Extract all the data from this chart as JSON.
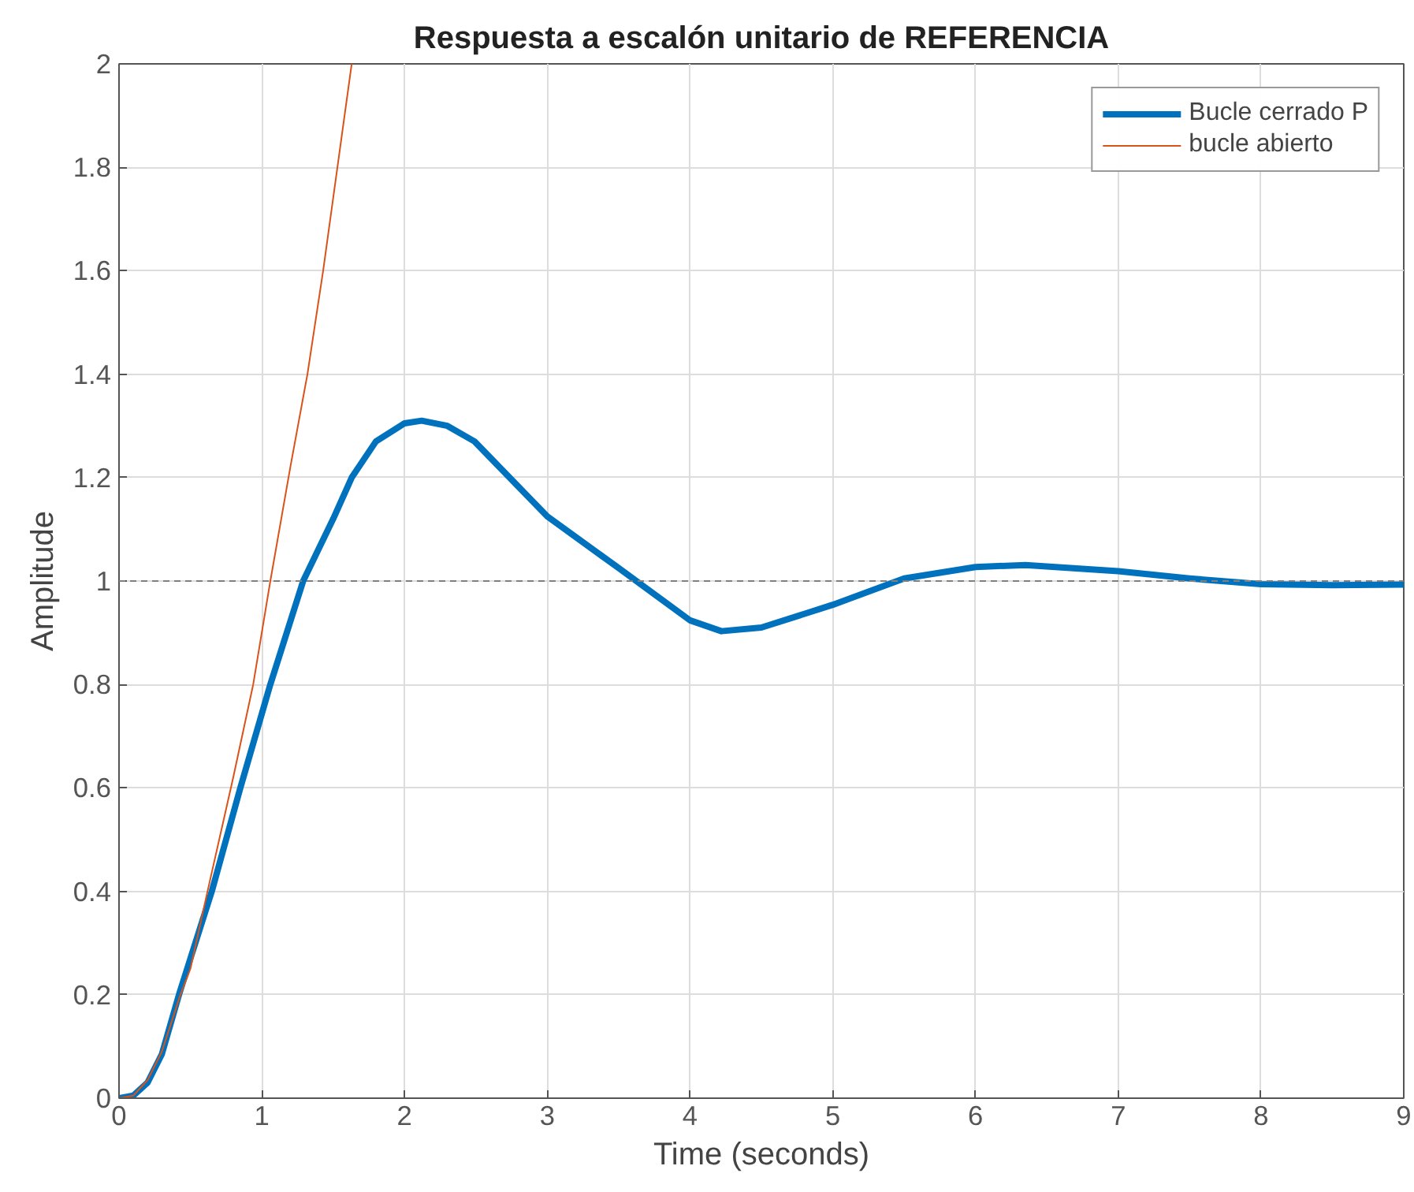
{
  "chart_data": {
    "type": "line",
    "title": "Respuesta a escalón unitario de REFERENCIA",
    "xlabel": "Time (seconds)",
    "ylabel": "Amplitude",
    "xlim": [
      0,
      9
    ],
    "ylim": [
      0,
      2
    ],
    "xticks": [
      0,
      1,
      2,
      3,
      4,
      5,
      6,
      7,
      8,
      9
    ],
    "yticks": [
      0,
      0.2,
      0.4,
      0.6,
      0.8,
      1,
      1.2,
      1.4,
      1.6,
      1.8,
      2
    ],
    "grid": true,
    "legend": "top right",
    "line_style": "solid",
    "ref_lines": [
      {
        "axis": "y",
        "value": 1,
        "label": null,
        "color": "#808080",
        "line_style": "dashed"
      }
    ],
    "series": [
      {
        "name": "Bucle cerrado P",
        "color": "#0072bd",
        "x": [
          0,
          0.1,
          0.2,
          0.3,
          0.42,
          0.5,
          0.65,
          0.85,
          1.06,
          1.29,
          1.5,
          1.63,
          1.8,
          2.0,
          2.12,
          2.3,
          2.49,
          3.0,
          3.5,
          4.0,
          4.22,
          4.5,
          5.0,
          5.5,
          6.0,
          6.35,
          7.0,
          7.5,
          8.0,
          8.5,
          9.0
        ],
        "values": [
          0,
          0.005,
          0.03,
          0.085,
          0.2,
          0.27,
          0.4,
          0.6,
          0.8,
          1.0,
          1.12,
          1.2,
          1.27,
          1.305,
          1.31,
          1.3,
          1.27,
          1.125,
          1.025,
          0.924,
          0.903,
          0.91,
          0.954,
          1.005,
          1.027,
          1.031,
          1.019,
          1.005,
          0.994,
          0.992,
          0.993
        ]
      },
      {
        "name": "bucle abierto",
        "color": "#d95319",
        "x": [
          0,
          0.1,
          0.2,
          0.3,
          0.43,
          0.5,
          0.62,
          0.8,
          0.94,
          1.06,
          1.2,
          1.32,
          1.43,
          1.53,
          1.63
        ],
        "values": [
          0,
          0.005,
          0.035,
          0.09,
          0.2,
          0.25,
          0.4,
          0.62,
          0.8,
          1.0,
          1.22,
          1.4,
          1.6,
          1.8,
          2.0
        ]
      }
    ]
  }
}
